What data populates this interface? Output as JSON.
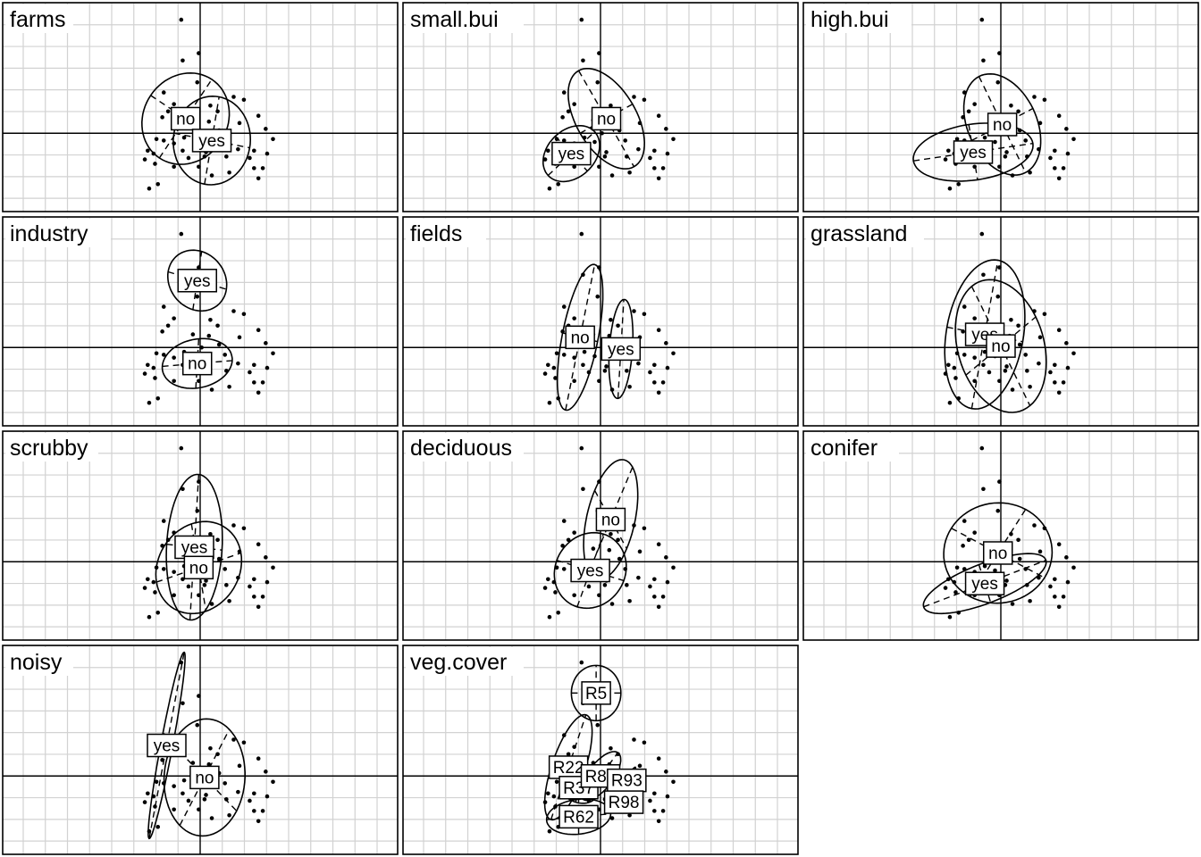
{
  "chart_data": {
    "type": "scatter",
    "grid": true,
    "xlim": [
      -7,
      7
    ],
    "ylim": [
      -5.5,
      8.5
    ],
    "points": [
      [
        -1.3,
        7.8
      ],
      [
        -0.1,
        5.5
      ],
      [
        -1.2,
        5.0
      ],
      [
        -0.2,
        3.5
      ],
      [
        0.7,
        1.9
      ],
      [
        -2.5,
        2.8
      ],
      [
        -1.8,
        2.0
      ],
      [
        -2.2,
        1.5
      ],
      [
        2.3,
        2.5
      ],
      [
        3.0,
        2.3
      ],
      [
        4.0,
        1.2
      ],
      [
        4.5,
        0.3
      ],
      [
        5.0,
        -0.4
      ],
      [
        4.6,
        -1.4
      ],
      [
        3.7,
        -1.2
      ],
      [
        3.4,
        -1.7
      ],
      [
        2.6,
        -1.1
      ],
      [
        1.7,
        -0.5
      ],
      [
        1.3,
        0.2
      ],
      [
        0.6,
        0.8
      ],
      [
        0.1,
        0.0
      ],
      [
        -0.4,
        -0.6
      ],
      [
        -1.1,
        -0.3
      ],
      [
        -1.8,
        -0.7
      ],
      [
        -2.5,
        -0.5
      ],
      [
        -3.0,
        -0.4
      ],
      [
        -3.2,
        -1.4
      ],
      [
        -3.6,
        -1.2
      ],
      [
        -3.8,
        -1.8
      ],
      [
        -3.1,
        -2.1
      ],
      [
        -3.5,
        -3.8
      ],
      [
        -2.9,
        -3.5
      ],
      [
        -1.8,
        -2.3
      ],
      [
        -1.2,
        -1.2
      ],
      [
        -0.8,
        -1.7
      ],
      [
        -0.1,
        -2.3
      ],
      [
        0.4,
        -1.3
      ],
      [
        0.8,
        -2.9
      ],
      [
        1.8,
        -1.6
      ],
      [
        2.0,
        -2.7
      ],
      [
        3.7,
        -2.4
      ],
      [
        4.0,
        -3.1
      ],
      [
        4.3,
        -2.4
      ],
      [
        1.2,
        1.5
      ],
      [
        -0.5,
        0.9
      ],
      [
        2.7,
        0.7
      ],
      [
        -2.6,
        1.1
      ],
      [
        0.3,
        -1.6
      ]
    ],
    "panels": [
      {
        "title": "farms",
        "groups": [
          {
            "label": "no",
            "center": [
              -1.0,
              1.0
            ],
            "axes": [
              [
                1.8,
                2.7
              ],
              [
                2.4,
                -1.6
              ]
            ]
          },
          {
            "label": "yes",
            "center": [
              0.8,
              -0.5
            ],
            "axes": [
              [
                2.6,
                -0.5
              ],
              [
                0.5,
                3.0
              ]
            ]
          }
        ]
      },
      {
        "title": "small.bui",
        "groups": [
          {
            "label": "yes",
            "center": [
              -2.0,
              -1.4
            ],
            "axes": [
              [
                1.1,
                -1.2
              ],
              [
                1.6,
                1.5
              ]
            ]
          },
          {
            "label": "no",
            "center": [
              0.4,
              1.0
            ],
            "axes": [
              [
                1.9,
                -3.3
              ],
              [
                1.8,
                1.0
              ]
            ]
          }
        ]
      },
      {
        "title": "high.bui",
        "groups": [
          {
            "label": "no",
            "center": [
              0.1,
              0.6
            ],
            "axes": [
              [
                2.1,
                1.1
              ],
              [
                1.6,
                -3.3
              ]
            ]
          },
          {
            "label": "yes",
            "center": [
              -1.9,
              -1.3
            ],
            "axes": [
              [
                4.1,
                0.6
              ],
              [
                0.3,
                -1.9
              ]
            ]
          }
        ]
      },
      {
        "title": "industry",
        "groups": [
          {
            "label": "yes",
            "center": [
              -0.2,
              4.6
            ],
            "axes": [
              [
                2.0,
                -0.6
              ],
              [
                0.3,
                2.0
              ]
            ]
          },
          {
            "label": "no",
            "center": [
              -0.2,
              -1.1
            ],
            "axes": [
              [
                2.4,
                0.2
              ],
              [
                0.1,
                1.7
              ]
            ]
          }
        ]
      },
      {
        "title": "fields",
        "groups": [
          {
            "label": "no",
            "center": [
              -1.4,
              0.7
            ],
            "axes": [
              [
                1.0,
                5.0
              ],
              [
                1.2,
                -0.3
              ]
            ]
          },
          {
            "label": "yes",
            "center": [
              1.4,
              -0.1
            ],
            "axes": [
              [
                0.2,
                3.4
              ],
              [
                0.8,
                0.1
              ]
            ]
          }
        ]
      },
      {
        "title": "grassland",
        "groups": [
          {
            "label": "yes",
            "center": [
              -1.1,
              0.9
            ],
            "axes": [
              [
                0.9,
                5.1
              ],
              [
                2.6,
                -0.5
              ]
            ]
          },
          {
            "label": "no",
            "center": [
              0.0,
              0.1
            ],
            "axes": [
              [
                2.4,
                2.0
              ],
              [
                2.0,
                -4.1
              ]
            ]
          }
        ]
      },
      {
        "title": "scrubby",
        "groups": [
          {
            "label": "yes",
            "center": [
              -0.4,
              1.0
            ],
            "axes": [
              [
                0.3,
                5.0
              ],
              [
                1.9,
                -0.2
              ]
            ]
          },
          {
            "label": "no",
            "center": [
              -0.1,
              -0.4
            ],
            "axes": [
              [
                2.9,
                1.0
              ],
              [
                0.5,
                -3.0
              ]
            ]
          }
        ]
      },
      {
        "title": "deciduous",
        "groups": [
          {
            "label": "no",
            "center": [
              0.7,
              2.9
            ],
            "axes": [
              [
                1.1,
                -2.0
              ],
              [
                1.5,
                3.6
              ]
            ]
          },
          {
            "label": "yes",
            "center": [
              -0.7,
              -0.6
            ],
            "axes": [
              [
                2.3,
                -0.7
              ],
              [
                0.9,
                2.5
              ]
            ]
          }
        ]
      },
      {
        "title": "conifer",
        "groups": [
          {
            "label": "no",
            "center": [
              -0.2,
              0.6
            ],
            "axes": [
              [
                1.9,
                3.0
              ],
              [
                3.2,
                -1.7
              ]
            ]
          },
          {
            "label": "yes",
            "center": [
              -1.1,
              -1.5
            ],
            "axes": [
              [
                4.2,
                1.6
              ],
              [
                0.4,
                -1.3
              ]
            ]
          }
        ]
      },
      {
        "title": "noisy",
        "groups": [
          {
            "label": "yes",
            "center": [
              -2.3,
              2.1
            ],
            "axes": [
              [
                1.2,
                6.4
              ],
              [
                0.4,
                -0.1
              ]
            ]
          },
          {
            "label": "no",
            "center": [
              0.3,
              -0.1
            ],
            "axes": [
              [
                2.2,
                -2.3
              ],
              [
                1.7,
                3.3
              ]
            ]
          }
        ]
      },
      {
        "title": "veg.cover",
        "groups": [
          {
            "label": "R5",
            "center": [
              -0.3,
              5.7
            ],
            "axes": [
              [
                1.7,
                0.0
              ],
              [
                0.0,
                1.9
              ]
            ]
          },
          {
            "label": "R22",
            "center": [
              -2.2,
              0.6
            ],
            "axes": [
              [
                1.2,
                3.6
              ],
              [
                1.1,
                -0.3
              ]
            ]
          },
          {
            "label": "R37",
            "center": [
              -1.5,
              -0.8
            ],
            "axes": [
              [
                1.3,
                -0.4
              ],
              [
                0.2,
                1.0
              ]
            ]
          },
          {
            "label": "R62",
            "center": [
              -1.5,
              -2.8
            ],
            "axes": [
              [
                2.2,
                0.2
              ],
              [
                0.0,
                1.2
              ]
            ]
          },
          {
            "label": "R87",
            "center": [
              0.0,
              0.0
            ],
            "axes": [
              [
                1.2,
                1.6
              ],
              [
                0.7,
                -0.5
              ]
            ]
          },
          {
            "label": "R93",
            "center": [
              1.8,
              -0.3
            ],
            "axes": [
              [
                0.6,
                0.9
              ],
              [
                0.1,
                -0.1
              ]
            ]
          },
          {
            "label": "R98",
            "center": [
              1.6,
              -1.8
            ],
            "axes": [
              [
                0.1,
                0.1
              ],
              [
                0.0,
                0.0
              ]
            ]
          }
        ]
      }
    ]
  }
}
